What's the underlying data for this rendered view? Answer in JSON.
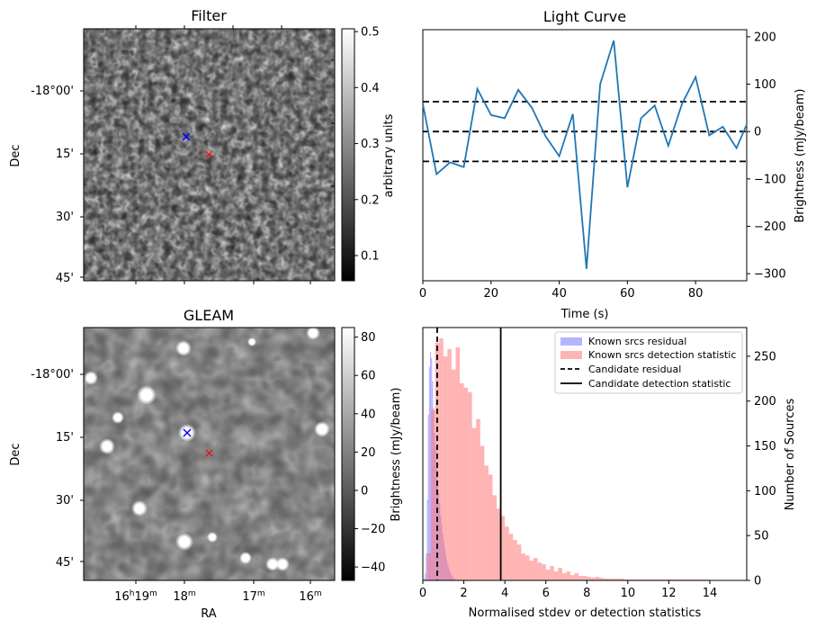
{
  "panels": {
    "filter": {
      "title": "Filter",
      "colorbar_label": "arbitrary units",
      "colorbar_ticks": [
        "0.5",
        "0.4",
        "0.3",
        "0.2",
        "0.1"
      ],
      "colorbar_range": [
        0.055,
        0.505
      ],
      "dec_ticks": [
        "-18°00'",
        "15'",
        "30'",
        "45'"
      ],
      "dec_label": "Dec",
      "markers": {
        "known": "blue-cross",
        "candidate": "red-cross"
      }
    },
    "gleam": {
      "title": "GLEAM",
      "colorbar_label": "Brightness (mJy/beam)",
      "colorbar_ticks": [
        "80",
        "60",
        "40",
        "20",
        "0",
        "−20",
        "−40"
      ],
      "colorbar_range": [
        -47,
        85
      ],
      "dec_ticks": [
        "-18°00'",
        "15'",
        "30'",
        "45'"
      ],
      "dec_label": "Dec",
      "ra_label": "RA",
      "ra_ticks": [
        {
          "h": "16",
          "hu": "h",
          "m": "19",
          "mu": "m"
        },
        {
          "h": "",
          "hu": "",
          "m": "18",
          "mu": "m"
        },
        {
          "h": "",
          "hu": "",
          "m": "17",
          "mu": "m"
        },
        {
          "h": "",
          "hu": "",
          "m": "16",
          "mu": "m"
        }
      ]
    }
  },
  "chart_data": [
    {
      "type": "line",
      "title": "Light Curve",
      "xlabel": "Time (s)",
      "ylabel": "Brightness (mJy/beam)",
      "xlim": [
        0,
        95
      ],
      "ylim": [
        -315,
        215
      ],
      "x_ticks": [
        0,
        20,
        40,
        60,
        80
      ],
      "y_ticks": [
        200,
        100,
        0,
        -100,
        -200,
        -300
      ],
      "x_tick_labels": [
        "0",
        "20",
        "40",
        "60",
        "80"
      ],
      "y_tick_labels": [
        "200",
        "100",
        "0",
        "−100",
        "−200",
        "−300"
      ],
      "series": [
        {
          "name": "light curve",
          "color": "#1f77b4",
          "x": [
            0,
            4,
            8,
            12,
            16,
            20,
            24,
            28,
            32,
            36,
            40,
            44,
            48,
            52,
            56,
            60,
            64,
            68,
            72,
            76,
            80,
            84,
            88,
            92,
            95
          ],
          "y": [
            58,
            -90,
            -65,
            -75,
            90,
            35,
            28,
            88,
            50,
            -10,
            -52,
            37,
            -290,
            100,
            192,
            -118,
            28,
            55,
            -30,
            58,
            115,
            -8,
            10,
            -35,
            15
          ]
        }
      ],
      "hlines": [
        {
          "y": 63,
          "style": "dashed"
        },
        {
          "y": 0,
          "style": "dashed"
        },
        {
          "y": -63,
          "style": "dashed"
        }
      ]
    },
    {
      "type": "histogram",
      "xlabel": "Normalised stdev or detection statistics",
      "ylabel": "Number of Sources",
      "xlim": [
        0,
        15.8
      ],
      "ylim": [
        0,
        282
      ],
      "x_ticks": [
        0,
        2,
        4,
        6,
        8,
        10,
        12,
        14
      ],
      "y_ticks": [
        0,
        50,
        100,
        150,
        200,
        250
      ],
      "x_tick_labels": [
        "0",
        "2",
        "4",
        "6",
        "8",
        "10",
        "12",
        "14"
      ],
      "y_tick_labels": [
        "0",
        "50",
        "100",
        "150",
        "200",
        "250"
      ],
      "legend": [
        "Known srcs residual",
        "Known srcs detection statistic",
        "Candidate residual",
        "Candidate detection statistic"
      ],
      "series": [
        {
          "name": "Known srcs residual",
          "color": "#7777ff",
          "bin_start": 0,
          "bin_width": 0.05,
          "counts": [
            0,
            2,
            8,
            30,
            90,
            185,
            238,
            255,
            248,
            222,
            192,
            164,
            150,
            128,
            112,
            98,
            86,
            72,
            62,
            52,
            44,
            36,
            28,
            22,
            17,
            13,
            10,
            7,
            5,
            3,
            2,
            1,
            1,
            0
          ]
        },
        {
          "name": "Known srcs detection statistic",
          "color": "#ff7777",
          "bin_start": 0.2,
          "bin_width": 0.2,
          "counts": [
            30,
            190,
            265,
            270,
            250,
            258,
            235,
            260,
            220,
            215,
            210,
            170,
            180,
            150,
            128,
            118,
            95,
            80,
            72,
            60,
            52,
            45,
            40,
            30,
            28,
            22,
            25,
            20,
            18,
            12,
            16,
            10,
            14,
            8,
            10,
            6,
            8,
            5,
            5,
            4,
            3,
            4,
            3,
            2,
            2,
            2,
            2,
            2,
            1,
            1,
            1,
            1,
            1,
            1,
            1,
            1,
            1,
            1,
            1,
            1,
            1,
            1,
            1,
            1,
            1,
            1,
            1,
            1,
            1
          ]
        }
      ],
      "vlines": [
        {
          "name": "Candidate residual",
          "x": 0.7,
          "style": "dashed"
        },
        {
          "name": "Candidate detection statistic",
          "x": 3.8,
          "style": "solid"
        }
      ]
    }
  ]
}
